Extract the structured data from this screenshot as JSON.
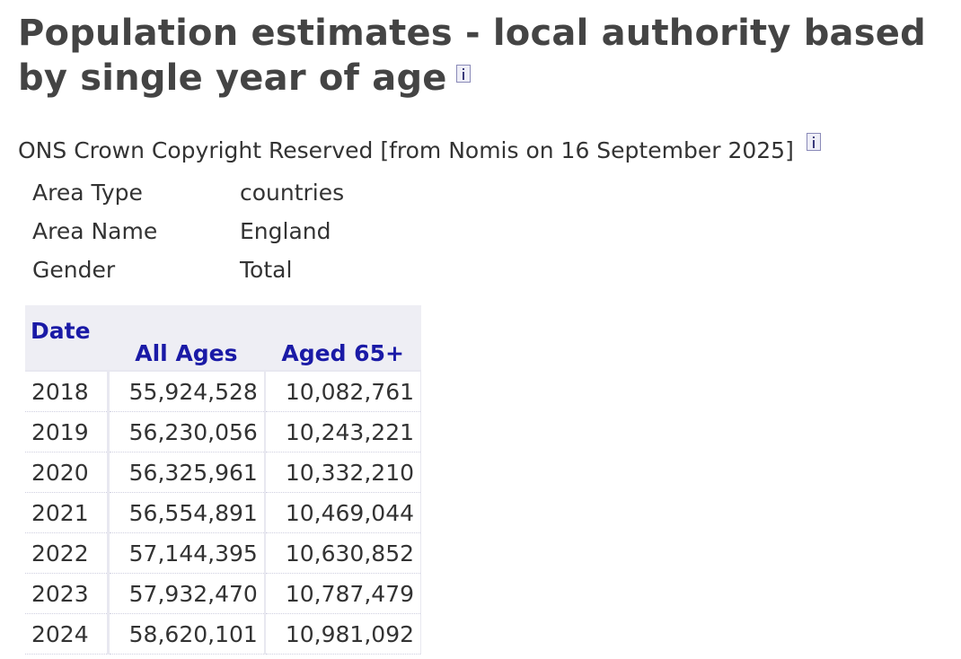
{
  "page": {
    "title": "Population estimates - local authority based by single year of age",
    "copyright": "ONS Crown Copyright Reserved [from Nomis on 16 September 2025]"
  },
  "meta": {
    "rows": [
      {
        "label": "Area Type",
        "value": "countries"
      },
      {
        "label": "Area Name",
        "value": "England"
      },
      {
        "label": "Gender",
        "value": "Total"
      }
    ]
  },
  "table": {
    "headers": [
      "Date",
      "All Ages",
      "Aged 65+"
    ],
    "rows": [
      [
        "2018",
        "55,924,528",
        "10,082,761"
      ],
      [
        "2019",
        "56,230,056",
        "10,243,221"
      ],
      [
        "2020",
        "56,325,961",
        "10,332,210"
      ],
      [
        "2021",
        "56,554,891",
        "10,469,044"
      ],
      [
        "2022",
        "57,144,395",
        "10,630,852"
      ],
      [
        "2023",
        "57,932,470",
        "10,787,479"
      ],
      [
        "2024",
        "58,620,101",
        "10,981,092"
      ]
    ]
  },
  "icons": {
    "title_info": "info-icon",
    "copyright_info": "info-icon"
  },
  "colors": {
    "heading_text": "#444444",
    "table_header_text": "#1a1aa6",
    "table_header_bg": "#eeeef4"
  }
}
